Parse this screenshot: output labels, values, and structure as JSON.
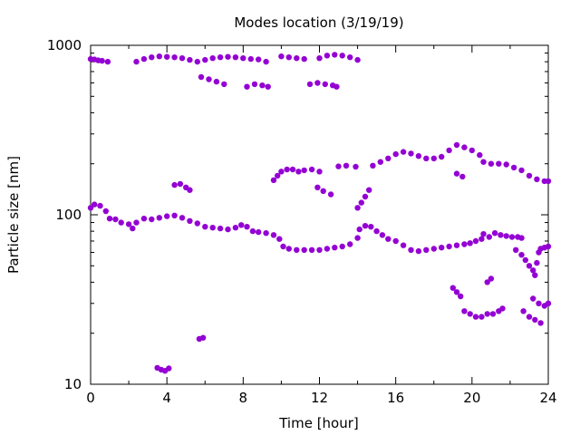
{
  "chart_data": {
    "type": "scatter",
    "title": "Modes location (3/19/19)",
    "xlabel": "Time [hour]",
    "ylabel": "Particle size [nm]",
    "xlim": [
      0,
      24
    ],
    "ylim": [
      10,
      1000
    ],
    "yscale": "log",
    "grid": false,
    "legend": "none",
    "xticks": [
      0,
      4,
      8,
      12,
      16,
      20,
      24
    ],
    "xtick_labels": [
      "0",
      "4",
      "8",
      "12",
      "16",
      "20",
      "24"
    ],
    "yticks": [
      10,
      100,
      1000
    ],
    "ytick_labels": [
      "10",
      "100",
      "1000"
    ],
    "marker_color": "#9400d3",
    "series": [
      {
        "values": [
          [
            0,
            830
          ],
          [
            0.2,
            825
          ],
          [
            0.4,
            815
          ],
          [
            0.6,
            810
          ],
          [
            0.9,
            800
          ],
          [
            2.4,
            800
          ],
          [
            2.8,
            830
          ],
          [
            3.2,
            850
          ],
          [
            3.6,
            860
          ],
          [
            4.0,
            855
          ],
          [
            4.4,
            850
          ],
          [
            4.8,
            840
          ],
          [
            5.2,
            820
          ],
          [
            5.6,
            800
          ],
          [
            6.0,
            820
          ],
          [
            6.4,
            840
          ],
          [
            6.8,
            850
          ],
          [
            7.2,
            855
          ],
          [
            7.6,
            850
          ],
          [
            8.0,
            840
          ],
          [
            8.4,
            830
          ],
          [
            8.8,
            825
          ],
          [
            9.2,
            800
          ],
          [
            10.0,
            860
          ],
          [
            10.4,
            850
          ],
          [
            10.8,
            840
          ],
          [
            11.2,
            830
          ],
          [
            12.0,
            840
          ],
          [
            12.4,
            870
          ],
          [
            12.8,
            880
          ],
          [
            13.2,
            870
          ],
          [
            13.6,
            850
          ],
          [
            14.0,
            820
          ],
          [
            5.8,
            650
          ],
          [
            6.2,
            630
          ],
          [
            6.6,
            610
          ],
          [
            7.0,
            590
          ],
          [
            8.2,
            570
          ],
          [
            8.6,
            590
          ],
          [
            9.0,
            580
          ],
          [
            9.3,
            570
          ],
          [
            11.5,
            590
          ],
          [
            11.9,
            600
          ],
          [
            12.3,
            590
          ],
          [
            12.7,
            580
          ],
          [
            12.9,
            570
          ]
        ]
      },
      {
        "values": [
          [
            9.6,
            160
          ],
          [
            9.8,
            170
          ],
          [
            10.0,
            180
          ],
          [
            10.3,
            185
          ],
          [
            10.6,
            185
          ],
          [
            10.9,
            180
          ],
          [
            11.2,
            183
          ],
          [
            11.6,
            185
          ],
          [
            12.0,
            180
          ],
          [
            11.9,
            145
          ],
          [
            12.2,
            138
          ],
          [
            12.6,
            132
          ],
          [
            13.0,
            193
          ],
          [
            13.4,
            195
          ],
          [
            13.9,
            192
          ],
          [
            14.0,
            110
          ],
          [
            14.2,
            118
          ],
          [
            14.4,
            128
          ],
          [
            14.6,
            140
          ],
          [
            14.8,
            195
          ],
          [
            15.2,
            205
          ],
          [
            15.6,
            215
          ],
          [
            16.0,
            228
          ],
          [
            16.4,
            235
          ],
          [
            16.8,
            230
          ],
          [
            17.2,
            222
          ],
          [
            17.6,
            215
          ],
          [
            18.0,
            215
          ],
          [
            18.4,
            220
          ],
          [
            18.8,
            240
          ],
          [
            19.2,
            258
          ],
          [
            19.6,
            250
          ],
          [
            20.0,
            240
          ],
          [
            20.4,
            225
          ],
          [
            20.6,
            205
          ],
          [
            21.0,
            200
          ],
          [
            21.4,
            200
          ],
          [
            21.8,
            198
          ],
          [
            22.2,
            190
          ],
          [
            22.6,
            183
          ],
          [
            23.0,
            170
          ],
          [
            23.4,
            162
          ],
          [
            23.8,
            158
          ],
          [
            24.0,
            158
          ],
          [
            19.2,
            175
          ],
          [
            19.5,
            168
          ],
          [
            4.4,
            150
          ],
          [
            4.7,
            152
          ],
          [
            5.0,
            145
          ],
          [
            5.2,
            140
          ]
        ]
      },
      {
        "values": [
          [
            0,
            110
          ],
          [
            0.2,
            115
          ],
          [
            0.5,
            113
          ],
          [
            0.8,
            105
          ],
          [
            1.0,
            95
          ],
          [
            1.3,
            94
          ],
          [
            1.6,
            90
          ],
          [
            2.0,
            88
          ],
          [
            2.2,
            83
          ],
          [
            2.4,
            90
          ],
          [
            2.8,
            95
          ],
          [
            3.2,
            94
          ],
          [
            3.6,
            96
          ],
          [
            4.0,
            98
          ],
          [
            4.4,
            99
          ],
          [
            4.8,
            96
          ],
          [
            5.2,
            92
          ],
          [
            5.6,
            89
          ],
          [
            6.0,
            85
          ],
          [
            6.4,
            84
          ],
          [
            6.8,
            83
          ],
          [
            7.2,
            82
          ],
          [
            7.6,
            84
          ],
          [
            7.9,
            87
          ],
          [
            8.2,
            85
          ],
          [
            8.5,
            80
          ],
          [
            8.8,
            79
          ],
          [
            9.2,
            78
          ],
          [
            9.6,
            76
          ],
          [
            9.9,
            72
          ],
          [
            10.1,
            65
          ],
          [
            10.4,
            63
          ],
          [
            10.8,
            62
          ],
          [
            11.2,
            62
          ],
          [
            11.6,
            62
          ],
          [
            12.0,
            62
          ],
          [
            12.4,
            63
          ],
          [
            12.8,
            64
          ],
          [
            13.2,
            65
          ],
          [
            13.6,
            67
          ],
          [
            14.0,
            73
          ],
          [
            14.1,
            82
          ],
          [
            14.4,
            86
          ],
          [
            14.7,
            85
          ],
          [
            15.0,
            80
          ],
          [
            15.3,
            76
          ],
          [
            15.6,
            72
          ],
          [
            16.0,
            70
          ],
          [
            16.4,
            66
          ],
          [
            16.8,
            62
          ],
          [
            17.2,
            61
          ],
          [
            17.6,
            62
          ],
          [
            18.0,
            63
          ],
          [
            18.4,
            64
          ],
          [
            18.8,
            65
          ],
          [
            19.2,
            66
          ],
          [
            19.6,
            67
          ],
          [
            19.9,
            68
          ],
          [
            20.2,
            70
          ],
          [
            20.5,
            72
          ],
          [
            20.6,
            77
          ],
          [
            20.9,
            74
          ],
          [
            21.2,
            78
          ],
          [
            21.5,
            76
          ],
          [
            21.8,
            75
          ],
          [
            22.1,
            74
          ],
          [
            22.4,
            74
          ],
          [
            22.6,
            73
          ]
        ]
      },
      {
        "values": [
          [
            22.3,
            62
          ],
          [
            22.6,
            58
          ],
          [
            22.8,
            54
          ],
          [
            23.0,
            50
          ],
          [
            23.2,
            47
          ],
          [
            23.3,
            44
          ],
          [
            23.4,
            52
          ],
          [
            23.5,
            60
          ],
          [
            23.6,
            63
          ],
          [
            23.8,
            64
          ],
          [
            24.0,
            65
          ],
          [
            19.0,
            37
          ],
          [
            19.2,
            35
          ],
          [
            19.4,
            33
          ],
          [
            19.6,
            27
          ],
          [
            19.9,
            26
          ],
          [
            20.2,
            25
          ],
          [
            20.5,
            25
          ],
          [
            20.8,
            26
          ],
          [
            21.1,
            26
          ],
          [
            21.4,
            27
          ],
          [
            21.6,
            28
          ],
          [
            20.8,
            40
          ],
          [
            21.0,
            42
          ],
          [
            22.7,
            27
          ],
          [
            23.0,
            25
          ],
          [
            23.3,
            24
          ],
          [
            23.6,
            23
          ],
          [
            23.2,
            32
          ],
          [
            23.5,
            30
          ],
          [
            23.8,
            29
          ],
          [
            24.0,
            30
          ]
        ]
      },
      {
        "values": [
          [
            3.5,
            12.5
          ],
          [
            3.7,
            12.2
          ],
          [
            3.9,
            12.0
          ],
          [
            4.1,
            12.4
          ],
          [
            5.7,
            18.5
          ],
          [
            5.9,
            18.8
          ]
        ]
      }
    ]
  }
}
